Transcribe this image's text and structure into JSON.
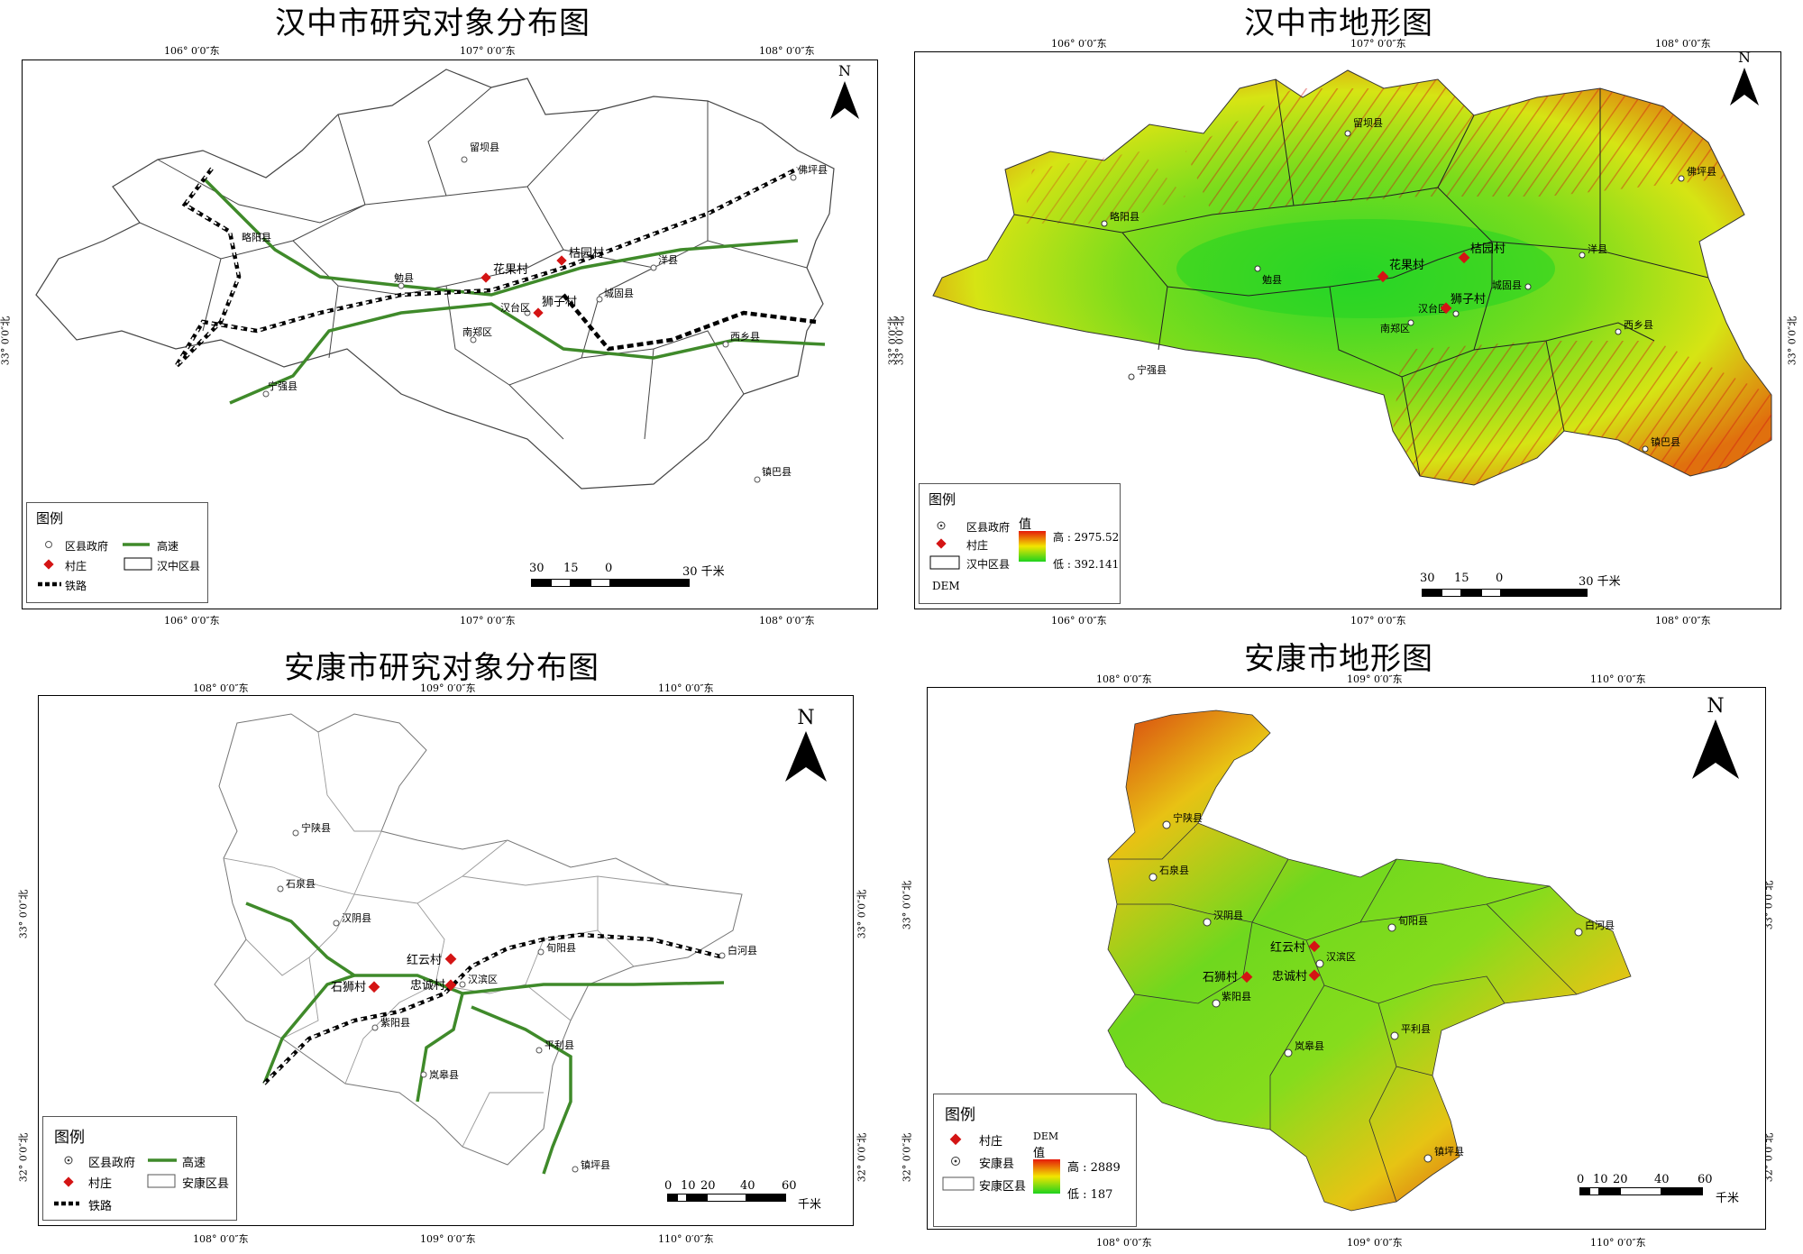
{
  "hz_dist": {
    "title": "汉中市研究对象分布图",
    "top_lon": [
      "106° 0′0″东",
      "107° 0′0″东",
      "108° 0′0″东"
    ],
    "bottom_lon": [
      "106° 0′0″东",
      "107° 0′0″东",
      "108° 0′0″东"
    ],
    "lat": "33° 0′0″北",
    "north": "N",
    "counties": [
      "留坝县",
      "略阳县",
      "佛坪县",
      "勉县",
      "洋县",
      "城固县",
      "汉台区",
      "南郑区",
      "西乡县",
      "宁强县",
      "镇巴县"
    ],
    "villages": [
      "花果村",
      "桔园村",
      "狮子村"
    ],
    "legend": {
      "title": "图例",
      "gov": "区县政府",
      "highway": "高速",
      "village": "村庄",
      "area": "汉中区县",
      "rail": "铁路"
    },
    "scale": {
      "labels": [
        "30",
        "15",
        "0",
        "30 千米"
      ]
    }
  },
  "hz_dem": {
    "title": "汉中市地形图",
    "top_lon": [
      "106° 0′0″东",
      "107° 0′0″东",
      "108° 0′0″东"
    ],
    "bottom_lon": [
      "106° 0′0″东",
      "107° 0′0″东",
      "108° 0′0″东"
    ],
    "lat": "33° 0′0″北",
    "north": "N",
    "counties": [
      "留坝县",
      "略阳县",
      "佛坪县",
      "勉县",
      "洋县",
      "城固县",
      "汉台区",
      "南郑区",
      "西乡县",
      "宁强县",
      "镇巴县"
    ],
    "villages": [
      "花果村",
      "桔园村",
      "狮子村"
    ],
    "legend": {
      "title": "图例",
      "gov": "区县政府",
      "village": "村庄",
      "area": "汉中区县",
      "dem": "DEM",
      "value": "值",
      "high": "高 : 2975.52",
      "low": "低 : 392.141"
    },
    "scale": {
      "labels": [
        "30",
        "15",
        "0",
        "30 千米"
      ]
    }
  },
  "ak_dist": {
    "title": "安康市研究对象分布图",
    "top_lon": [
      "108° 0′0″东",
      "109° 0′0″东",
      "110° 0′0″东"
    ],
    "bottom_lon": [
      "108° 0′0″东",
      "109° 0′0″东",
      "110° 0′0″东"
    ],
    "lat_top": "33° 0′0″北",
    "lat_bottom": "32° 0′0″北",
    "north": "N",
    "counties": [
      "宁陕县",
      "石泉县",
      "汉阴县",
      "旬阳县",
      "白河县",
      "汉滨区",
      "紫阳县",
      "岚皋县",
      "平利县",
      "镇坪县"
    ],
    "villages": [
      "红云村",
      "石狮村",
      "忠诚村"
    ],
    "legend": {
      "title": "图例",
      "gov": "区县政府",
      "highway": "高速",
      "village": "村庄",
      "area": "安康区县",
      "rail": "铁路"
    },
    "scale": {
      "labels": [
        "0",
        "10",
        "20",
        "40",
        "60"
      ],
      "unit": "千米"
    }
  },
  "ak_dem": {
    "title": "安康市地形图",
    "top_lon": [
      "108° 0′0″东",
      "109° 0′0″东",
      "110° 0′0″东"
    ],
    "bottom_lon": [
      "108° 0′0″东",
      "109° 0′0″东",
      "110° 0′0″东"
    ],
    "lat_top": "33° 0′0″北",
    "lat_bottom": "32° 0′0″北",
    "north": "N",
    "counties": [
      "宁陕县",
      "石泉县",
      "汉阴县",
      "旬阳县",
      "白河县",
      "汉滨区",
      "紫阳县",
      "岚皋县",
      "平利县",
      "镇坪县"
    ],
    "villages": [
      "红云村",
      "石狮村",
      "忠诚村"
    ],
    "legend": {
      "title": "图例",
      "village": "村庄",
      "gov": "安康县",
      "area": "安康区县",
      "dem": "DEM",
      "value": "值",
      "high": "高 : 2889",
      "low": "低 : 187"
    },
    "scale": {
      "labels": [
        "0",
        "10",
        "20",
        "40",
        "60"
      ],
      "unit": "千米"
    }
  },
  "colors": {
    "highway": "#3f8a2a",
    "village": "#d41414",
    "dem_high": "#e51a0a",
    "dem_mid": "#f2e600",
    "dem_low": "#1ed21e"
  }
}
